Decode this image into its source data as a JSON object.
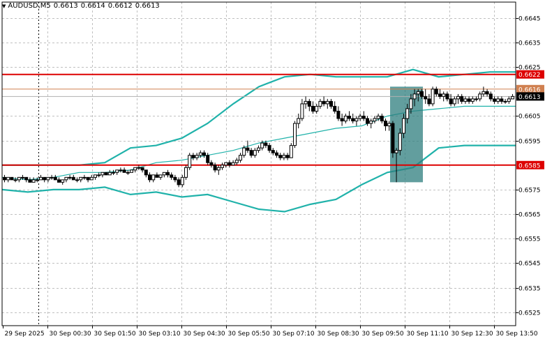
{
  "header": {
    "symbol_label": "AUDUSD,M5",
    "open": "0.6613",
    "high": "0.6614",
    "low": "0.6612",
    "close": "0.6613",
    "menu_icon": "triangle-down-icon"
  },
  "colors": {
    "candle": "#000000",
    "bollinger": "#20b2aa",
    "level_line": "#dd0000",
    "bid_line": "#d08050",
    "highlight": "#2e7d7d",
    "grid": "#c0c0c0",
    "axis_text": "#000000"
  },
  "chart_data": {
    "type": "candlestick",
    "symbol": "AUDUSD",
    "timeframe": "M5",
    "y_ticks": [
      "0.6645",
      "0.6635",
      "0.6625",
      "0.6605",
      "0.6595",
      "0.6575",
      "0.6565",
      "0.6555",
      "0.6545",
      "0.6535",
      "0.6525"
    ],
    "ylim": [
      0.65195,
      0.66515
    ],
    "x_ticks": [
      "29 Sep 2025",
      "30 Sep 00:30",
      "30 Sep 01:50",
      "30 Sep 03:10",
      "30 Sep 04:30",
      "30 Sep 05:50",
      "30 Sep 07:10",
      "30 Sep 08:30",
      "30 Sep 09:50",
      "30 Sep 11:10",
      "30 Sep 12:30",
      "30 Sep 13:50"
    ],
    "grid": true,
    "levels": [
      {
        "value": 0.6622,
        "label": "0.6622"
      },
      {
        "value": 0.6585,
        "label": "0.6585"
      }
    ],
    "price_markers": [
      {
        "value": 0.6616,
        "label": "0.6616",
        "kind": "ask"
      },
      {
        "value": 0.6613,
        "label": "0.6613",
        "kind": "bid"
      }
    ],
    "bollinger": {
      "upper": [
        0.6585,
        0.6585,
        0.6585,
        0.6585,
        0.6586,
        0.6592,
        0.6593,
        0.6596,
        0.6602,
        0.661,
        0.6617,
        0.6621,
        0.6622,
        0.6621,
        0.6621,
        0.6621,
        0.6624,
        0.6621,
        0.6622,
        0.6623,
        0.6623
      ],
      "middle": [
        0.658,
        0.6579,
        0.658,
        0.6582,
        0.6582,
        0.6583,
        0.6586,
        0.6587,
        0.6589,
        0.6591,
        0.6594,
        0.6596,
        0.6598,
        0.66,
        0.6601,
        0.6605,
        0.6607,
        0.6608,
        0.6609,
        0.6609,
        0.6609
      ],
      "lower": [
        0.6575,
        0.6574,
        0.6575,
        0.6575,
        0.6576,
        0.6573,
        0.6574,
        0.6572,
        0.6573,
        0.657,
        0.6567,
        0.6566,
        0.6569,
        0.6571,
        0.6577,
        0.6582,
        0.6584,
        0.6592,
        0.6593,
        0.6593,
        0.6593
      ]
    },
    "candles": [
      {
        "o": 0.658,
        "h": 0.6581,
        "l": 0.6578,
        "c": 0.6579
      },
      {
        "o": 0.6579,
        "h": 0.658,
        "l": 0.6578,
        "c": 0.658
      },
      {
        "o": 0.658,
        "h": 0.658,
        "l": 0.6579,
        "c": 0.6579
      },
      {
        "o": 0.6579,
        "h": 0.658,
        "l": 0.6578,
        "c": 0.6579
      },
      {
        "o": 0.6579,
        "h": 0.658,
        "l": 0.6578,
        "c": 0.658
      },
      {
        "o": 0.658,
        "h": 0.6581,
        "l": 0.6579,
        "c": 0.658
      },
      {
        "o": 0.658,
        "h": 0.658,
        "l": 0.6578,
        "c": 0.6579
      },
      {
        "o": 0.6579,
        "h": 0.658,
        "l": 0.6578,
        "c": 0.6578
      },
      {
        "o": 0.6578,
        "h": 0.658,
        "l": 0.6578,
        "c": 0.6579
      },
      {
        "o": 0.6579,
        "h": 0.658,
        "l": 0.6578,
        "c": 0.6579
      },
      {
        "o": 0.6579,
        "h": 0.6581,
        "l": 0.6579,
        "c": 0.658
      },
      {
        "o": 0.658,
        "h": 0.658,
        "l": 0.6578,
        "c": 0.6579
      },
      {
        "o": 0.6579,
        "h": 0.658,
        "l": 0.6578,
        "c": 0.658
      },
      {
        "o": 0.658,
        "h": 0.6581,
        "l": 0.6579,
        "c": 0.658
      },
      {
        "o": 0.658,
        "h": 0.6581,
        "l": 0.6579,
        "c": 0.6579
      },
      {
        "o": 0.6579,
        "h": 0.658,
        "l": 0.6578,
        "c": 0.6578
      },
      {
        "o": 0.6578,
        "h": 0.6579,
        "l": 0.6577,
        "c": 0.6579
      },
      {
        "o": 0.6579,
        "h": 0.658,
        "l": 0.6578,
        "c": 0.658
      },
      {
        "o": 0.658,
        "h": 0.6581,
        "l": 0.6579,
        "c": 0.658
      },
      {
        "o": 0.658,
        "h": 0.6581,
        "l": 0.6579,
        "c": 0.6579
      },
      {
        "o": 0.6579,
        "h": 0.658,
        "l": 0.6578,
        "c": 0.6579
      },
      {
        "o": 0.6579,
        "h": 0.658,
        "l": 0.6578,
        "c": 0.658
      },
      {
        "o": 0.658,
        "h": 0.6581,
        "l": 0.6579,
        "c": 0.658
      },
      {
        "o": 0.658,
        "h": 0.658,
        "l": 0.6578,
        "c": 0.6579
      },
      {
        "o": 0.6579,
        "h": 0.6581,
        "l": 0.6579,
        "c": 0.658
      },
      {
        "o": 0.658,
        "h": 0.6581,
        "l": 0.6579,
        "c": 0.6581
      },
      {
        "o": 0.6581,
        "h": 0.6582,
        "l": 0.658,
        "c": 0.6581
      },
      {
        "o": 0.6581,
        "h": 0.6582,
        "l": 0.658,
        "c": 0.6582
      },
      {
        "o": 0.6582,
        "h": 0.6582,
        "l": 0.6581,
        "c": 0.6581
      },
      {
        "o": 0.6581,
        "h": 0.6583,
        "l": 0.6581,
        "c": 0.6582
      },
      {
        "o": 0.6582,
        "h": 0.6583,
        "l": 0.6581,
        "c": 0.6582
      },
      {
        "o": 0.6582,
        "h": 0.6583,
        "l": 0.6581,
        "c": 0.6583
      },
      {
        "o": 0.6583,
        "h": 0.6584,
        "l": 0.6582,
        "c": 0.6583
      },
      {
        "o": 0.6583,
        "h": 0.6584,
        "l": 0.6582,
        "c": 0.6582
      },
      {
        "o": 0.6582,
        "h": 0.6583,
        "l": 0.6581,
        "c": 0.6582
      },
      {
        "o": 0.6582,
        "h": 0.6583,
        "l": 0.6582,
        "c": 0.6583
      },
      {
        "o": 0.6583,
        "h": 0.6584,
        "l": 0.6582,
        "c": 0.6584
      },
      {
        "o": 0.6584,
        "h": 0.6585,
        "l": 0.6583,
        "c": 0.6584
      },
      {
        "o": 0.6584,
        "h": 0.6584,
        "l": 0.6582,
        "c": 0.6583
      },
      {
        "o": 0.6583,
        "h": 0.6583,
        "l": 0.658,
        "c": 0.6581
      },
      {
        "o": 0.6581,
        "h": 0.6582,
        "l": 0.6578,
        "c": 0.6579
      },
      {
        "o": 0.6579,
        "h": 0.6581,
        "l": 0.6578,
        "c": 0.6581
      },
      {
        "o": 0.6581,
        "h": 0.6582,
        "l": 0.658,
        "c": 0.658
      },
      {
        "o": 0.658,
        "h": 0.6581,
        "l": 0.6579,
        "c": 0.6581
      },
      {
        "o": 0.6581,
        "h": 0.6582,
        "l": 0.658,
        "c": 0.6582
      },
      {
        "o": 0.6582,
        "h": 0.6583,
        "l": 0.658,
        "c": 0.6581
      },
      {
        "o": 0.6581,
        "h": 0.6582,
        "l": 0.6579,
        "c": 0.658
      },
      {
        "o": 0.658,
        "h": 0.6581,
        "l": 0.6578,
        "c": 0.6579
      },
      {
        "o": 0.6579,
        "h": 0.658,
        "l": 0.6576,
        "c": 0.6577
      },
      {
        "o": 0.6577,
        "h": 0.6581,
        "l": 0.6576,
        "c": 0.658
      },
      {
        "o": 0.658,
        "h": 0.6585,
        "l": 0.6579,
        "c": 0.6584
      },
      {
        "o": 0.6584,
        "h": 0.659,
        "l": 0.6583,
        "c": 0.6589
      },
      {
        "o": 0.6589,
        "h": 0.659,
        "l": 0.6587,
        "c": 0.6588
      },
      {
        "o": 0.6588,
        "h": 0.659,
        "l": 0.6587,
        "c": 0.6589
      },
      {
        "o": 0.6589,
        "h": 0.6591,
        "l": 0.6588,
        "c": 0.659
      },
      {
        "o": 0.659,
        "h": 0.6591,
        "l": 0.6588,
        "c": 0.6589
      },
      {
        "o": 0.6589,
        "h": 0.659,
        "l": 0.6585,
        "c": 0.6586
      },
      {
        "o": 0.6586,
        "h": 0.6587,
        "l": 0.6584,
        "c": 0.6585
      },
      {
        "o": 0.6585,
        "h": 0.6586,
        "l": 0.6582,
        "c": 0.6583
      },
      {
        "o": 0.6583,
        "h": 0.6585,
        "l": 0.6581,
        "c": 0.6584
      },
      {
        "o": 0.6584,
        "h": 0.6586,
        "l": 0.6583,
        "c": 0.6585
      },
      {
        "o": 0.6585,
        "h": 0.6586,
        "l": 0.6584,
        "c": 0.6586
      },
      {
        "o": 0.6586,
        "h": 0.6587,
        "l": 0.6584,
        "c": 0.6585
      },
      {
        "o": 0.6585,
        "h": 0.6587,
        "l": 0.6585,
        "c": 0.6586
      },
      {
        "o": 0.6586,
        "h": 0.6588,
        "l": 0.6585,
        "c": 0.6587
      },
      {
        "o": 0.6587,
        "h": 0.659,
        "l": 0.6586,
        "c": 0.6589
      },
      {
        "o": 0.6589,
        "h": 0.6593,
        "l": 0.6588,
        "c": 0.6592
      },
      {
        "o": 0.6592,
        "h": 0.6595,
        "l": 0.659,
        "c": 0.6591
      },
      {
        "o": 0.6591,
        "h": 0.6592,
        "l": 0.6588,
        "c": 0.6589
      },
      {
        "o": 0.6589,
        "h": 0.6592,
        "l": 0.6588,
        "c": 0.6591
      },
      {
        "o": 0.6591,
        "h": 0.6593,
        "l": 0.659,
        "c": 0.6592
      },
      {
        "o": 0.6592,
        "h": 0.6595,
        "l": 0.6591,
        "c": 0.6594
      },
      {
        "o": 0.6594,
        "h": 0.6595,
        "l": 0.6592,
        "c": 0.6593
      },
      {
        "o": 0.6593,
        "h": 0.6594,
        "l": 0.659,
        "c": 0.6591
      },
      {
        "o": 0.6591,
        "h": 0.6592,
        "l": 0.6589,
        "c": 0.659
      },
      {
        "o": 0.659,
        "h": 0.6591,
        "l": 0.6588,
        "c": 0.6589
      },
      {
        "o": 0.6589,
        "h": 0.659,
        "l": 0.6587,
        "c": 0.6588
      },
      {
        "o": 0.6588,
        "h": 0.659,
        "l": 0.6587,
        "c": 0.6589
      },
      {
        "o": 0.6589,
        "h": 0.659,
        "l": 0.6587,
        "c": 0.6588
      },
      {
        "o": 0.6588,
        "h": 0.6594,
        "l": 0.6588,
        "c": 0.6593
      },
      {
        "o": 0.6593,
        "h": 0.6603,
        "l": 0.6592,
        "c": 0.6602
      },
      {
        "o": 0.6602,
        "h": 0.6606,
        "l": 0.66,
        "c": 0.6604
      },
      {
        "o": 0.6604,
        "h": 0.6612,
        "l": 0.6603,
        "c": 0.661
      },
      {
        "o": 0.661,
        "h": 0.6613,
        "l": 0.6608,
        "c": 0.6611
      },
      {
        "o": 0.6611,
        "h": 0.6612,
        "l": 0.6607,
        "c": 0.6609
      },
      {
        "o": 0.6609,
        "h": 0.6611,
        "l": 0.6606,
        "c": 0.6607
      },
      {
        "o": 0.6607,
        "h": 0.661,
        "l": 0.6606,
        "c": 0.6609
      },
      {
        "o": 0.6609,
        "h": 0.6612,
        "l": 0.6608,
        "c": 0.6611
      },
      {
        "o": 0.6611,
        "h": 0.6613,
        "l": 0.6609,
        "c": 0.661
      },
      {
        "o": 0.661,
        "h": 0.6612,
        "l": 0.6608,
        "c": 0.6611
      },
      {
        "o": 0.6611,
        "h": 0.6612,
        "l": 0.6608,
        "c": 0.6609
      },
      {
        "o": 0.6609,
        "h": 0.6611,
        "l": 0.6606,
        "c": 0.6607
      },
      {
        "o": 0.6607,
        "h": 0.6609,
        "l": 0.6603,
        "c": 0.6604
      },
      {
        "o": 0.6604,
        "h": 0.6606,
        "l": 0.6601,
        "c": 0.6603
      },
      {
        "o": 0.6603,
        "h": 0.6606,
        "l": 0.6602,
        "c": 0.6605
      },
      {
        "o": 0.6605,
        "h": 0.6607,
        "l": 0.6603,
        "c": 0.6604
      },
      {
        "o": 0.6604,
        "h": 0.6606,
        "l": 0.6602,
        "c": 0.6603
      },
      {
        "o": 0.6603,
        "h": 0.6605,
        "l": 0.6601,
        "c": 0.6604
      },
      {
        "o": 0.6604,
        "h": 0.6606,
        "l": 0.6603,
        "c": 0.6605
      },
      {
        "o": 0.6605,
        "h": 0.6607,
        "l": 0.6603,
        "c": 0.6604
      },
      {
        "o": 0.6604,
        "h": 0.6605,
        "l": 0.6601,
        "c": 0.6602
      },
      {
        "o": 0.6602,
        "h": 0.6604,
        "l": 0.66,
        "c": 0.6603
      },
      {
        "o": 0.6603,
        "h": 0.6605,
        "l": 0.6602,
        "c": 0.6604
      },
      {
        "o": 0.6604,
        "h": 0.6606,
        "l": 0.6603,
        "c": 0.6605
      },
      {
        "o": 0.6605,
        "h": 0.6606,
        "l": 0.6602,
        "c": 0.6603
      },
      {
        "o": 0.6603,
        "h": 0.6604,
        "l": 0.6599,
        "c": 0.6601
      },
      {
        "o": 0.6601,
        "h": 0.6603,
        "l": 0.6599,
        "c": 0.6602
      },
      {
        "o": 0.6602,
        "h": 0.6603,
        "l": 0.6588,
        "c": 0.659
      },
      {
        "o": 0.659,
        "h": 0.6592,
        "l": 0.6578,
        "c": 0.6591
      },
      {
        "o": 0.6591,
        "h": 0.66,
        "l": 0.6589,
        "c": 0.6598
      },
      {
        "o": 0.6598,
        "h": 0.6606,
        "l": 0.6596,
        "c": 0.6604
      },
      {
        "o": 0.6604,
        "h": 0.661,
        "l": 0.6602,
        "c": 0.6608
      },
      {
        "o": 0.6608,
        "h": 0.6614,
        "l": 0.6606,
        "c": 0.6612
      },
      {
        "o": 0.6612,
        "h": 0.6616,
        "l": 0.6609,
        "c": 0.6614
      },
      {
        "o": 0.6614,
        "h": 0.6616,
        "l": 0.6611,
        "c": 0.6615
      },
      {
        "o": 0.6615,
        "h": 0.6616,
        "l": 0.6612,
        "c": 0.6613
      },
      {
        "o": 0.6613,
        "h": 0.6616,
        "l": 0.661,
        "c": 0.6612
      },
      {
        "o": 0.6612,
        "h": 0.6614,
        "l": 0.6609,
        "c": 0.661
      },
      {
        "o": 0.661,
        "h": 0.6617,
        "l": 0.6609,
        "c": 0.6616
      },
      {
        "o": 0.6616,
        "h": 0.6617,
        "l": 0.6613,
        "c": 0.6614
      },
      {
        "o": 0.6614,
        "h": 0.6616,
        "l": 0.6612,
        "c": 0.6613
      },
      {
        "o": 0.6613,
        "h": 0.6615,
        "l": 0.6611,
        "c": 0.6614
      },
      {
        "o": 0.6614,
        "h": 0.6615,
        "l": 0.6611,
        "c": 0.6612
      },
      {
        "o": 0.6612,
        "h": 0.6614,
        "l": 0.6609,
        "c": 0.661
      },
      {
        "o": 0.661,
        "h": 0.6613,
        "l": 0.6609,
        "c": 0.6612
      },
      {
        "o": 0.6612,
        "h": 0.6614,
        "l": 0.661,
        "c": 0.6613
      },
      {
        "o": 0.6613,
        "h": 0.6614,
        "l": 0.661,
        "c": 0.6611
      },
      {
        "o": 0.6611,
        "h": 0.6613,
        "l": 0.661,
        "c": 0.6612
      },
      {
        "o": 0.6612,
        "h": 0.6613,
        "l": 0.661,
        "c": 0.6611
      },
      {
        "o": 0.6611,
        "h": 0.6613,
        "l": 0.661,
        "c": 0.6612
      },
      {
        "o": 0.6612,
        "h": 0.6613,
        "l": 0.6611,
        "c": 0.6612
      },
      {
        "o": 0.6612,
        "h": 0.6615,
        "l": 0.6611,
        "c": 0.6614
      },
      {
        "o": 0.6614,
        "h": 0.6617,
        "l": 0.6613,
        "c": 0.6615
      },
      {
        "o": 0.6615,
        "h": 0.6616,
        "l": 0.6613,
        "c": 0.6614
      },
      {
        "o": 0.6614,
        "h": 0.6615,
        "l": 0.6611,
        "c": 0.6612
      },
      {
        "o": 0.6612,
        "h": 0.6613,
        "l": 0.661,
        "c": 0.6611
      },
      {
        "o": 0.6611,
        "h": 0.6613,
        "l": 0.661,
        "c": 0.6612
      },
      {
        "o": 0.6612,
        "h": 0.6613,
        "l": 0.661,
        "c": 0.6611
      },
      {
        "o": 0.6611,
        "h": 0.6612,
        "l": 0.661,
        "c": 0.6611
      },
      {
        "o": 0.6611,
        "h": 0.6613,
        "l": 0.661,
        "c": 0.6612
      },
      {
        "o": 0.6612,
        "h": 0.6614,
        "l": 0.6612,
        "c": 0.6613
      }
    ]
  }
}
